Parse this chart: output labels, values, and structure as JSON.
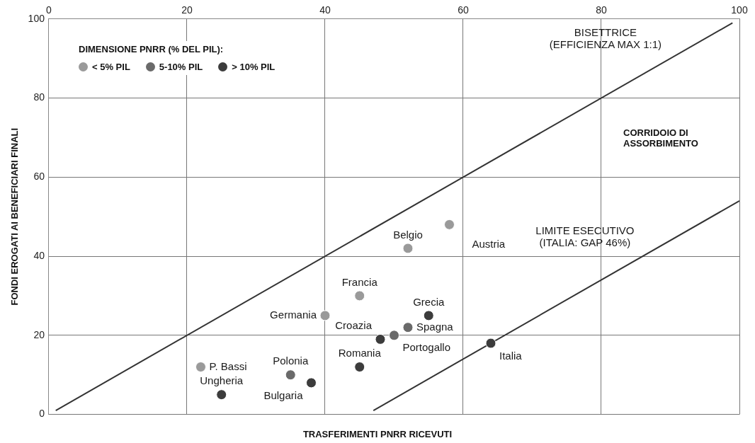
{
  "chart_data": {
    "type": "scatter",
    "xlabel": "TRASFERIMENTI PNRR RICEVUTI",
    "ylabel": "FONDI EROGATI AI BENEFICIARI FINALI",
    "legend_title": "DIMENSIONE PNRR (% DEL PIL):",
    "legend": "top left",
    "grid": true,
    "marker": "circle",
    "xlim": [
      0,
      100
    ],
    "xticks": [
      0,
      20,
      40,
      60,
      80,
      100
    ],
    "ylim": [
      0,
      100
    ],
    "yticks": [
      0,
      20,
      40,
      60,
      80,
      100
    ],
    "series": [
      {
        "name": "< 5% PIL",
        "color": "#9a9a9a",
        "x": [
          22,
          40,
          45,
          52,
          58
        ],
        "values": [
          12,
          25,
          30,
          42,
          48
        ]
      },
      {
        "name": "5-10% PIL",
        "color": "#6a6a6a",
        "x": [
          35,
          50,
          52
        ],
        "values": [
          10,
          20,
          22
        ]
      },
      {
        "name": "> 10% PIL",
        "color": "#3c3c3c",
        "x": [
          25,
          38,
          45,
          48,
          55,
          64
        ],
        "values": [
          5,
          8,
          12,
          19,
          25,
          18
        ]
      },
      {
        "type": "line",
        "marker": "none",
        "color": "#333333",
        "x": [
          1,
          99
        ],
        "values": [
          1,
          99
        ]
      },
      {
        "type": "line",
        "marker": "none",
        "color": "#333333",
        "x": [
          47,
          100
        ],
        "values": [
          1,
          54
        ]
      }
    ],
    "annotations": [
      {
        "text": "Italia",
        "x": 64,
        "y": 18
      },
      {
        "text": "P. Bassi",
        "x": 22,
        "y": 12
      },
      {
        "text": "Ungheria",
        "x": 25,
        "y": 5
      },
      {
        "text": "Polonia",
        "x": 35,
        "y": 10
      },
      {
        "text": "Bulgaria",
        "x": 38,
        "y": 8
      },
      {
        "text": "Germania",
        "x": 40,
        "y": 25
      },
      {
        "text": "Francia",
        "x": 45,
        "y": 30
      },
      {
        "text": "Romania",
        "x": 45,
        "y": 12
      },
      {
        "text": "Croazia",
        "x": 48,
        "y": 19
      },
      {
        "text": "Portogallo",
        "x": 50,
        "y": 20
      },
      {
        "text": "Grecia",
        "x": 55,
        "y": 25
      },
      {
        "text": "Spagna",
        "x": 52,
        "y": 22
      },
      {
        "text": "Belgio",
        "x": 52,
        "y": 42
      },
      {
        "text": "Austria",
        "x": 58,
        "y": 48
      },
      {
        "text": "BISETTRICE (EFFICIENZA MAX 1:1)",
        "x": 90,
        "y": 90
      },
      "CORRIDOIO DI ASSORBIMENTO",
      {
        "text": "LIMITE ESECUTIVO (ITALIA: GAP 46%)",
        "x": 86,
        "y": 40
      }
    ]
  }
}
